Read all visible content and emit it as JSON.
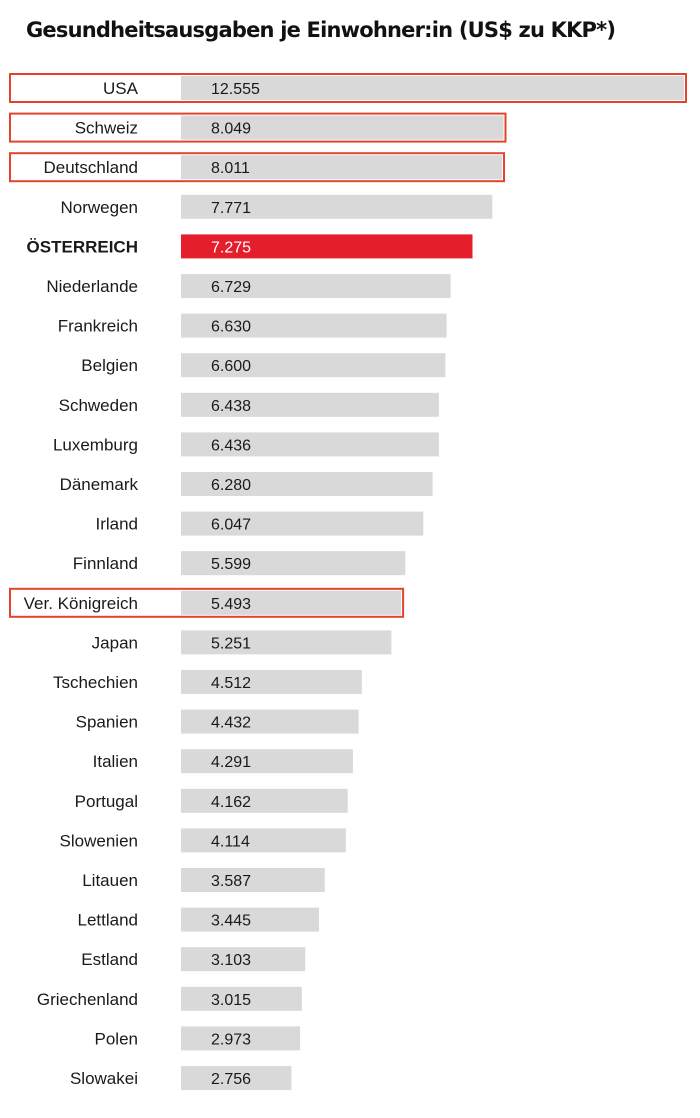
{
  "chart_data": {
    "type": "bar",
    "orientation": "horizontal",
    "title": "Gesundheitsausgaben je Einwohner:in (US$ zu KKP*)",
    "categories": [
      "USA",
      "Schweiz",
      "Deutschland",
      "Norwegen",
      "ÖSTERREICH",
      "Niederlande",
      "Frankreich",
      "Belgien",
      "Schweden",
      "Luxemburg",
      "Dänemark",
      "Irland",
      "Finnland",
      "Ver. Königreich",
      "Japan",
      "Tschechien",
      "Spanien",
      "Italien",
      "Portugal",
      "Slowenien",
      "Litauen",
      "Lettland",
      "Estland",
      "Griechenland",
      "Polen",
      "Slowakei"
    ],
    "values": [
      12555,
      8049,
      8011,
      7771,
      7275,
      6729,
      6630,
      6600,
      6438,
      6436,
      6280,
      6047,
      5599,
      5493,
      5251,
      4512,
      4432,
      4291,
      4162,
      4114,
      3587,
      3445,
      3103,
      3015,
      2973,
      2756
    ],
    "value_labels": [
      "12.555",
      "8.049",
      "8.011",
      "7.771",
      "7.275",
      "6.729",
      "6.630",
      "6.600",
      "6.438",
      "6.436",
      "6.280",
      "6.047",
      "5.599",
      "5.493",
      "5.251",
      "4.512",
      "4.432",
      "4.291",
      "4.162",
      "4.114",
      "3.587",
      "3.445",
      "3.103",
      "3.015",
      "2.973",
      "2.756"
    ],
    "highlighted_category": "ÖSTERREICH",
    "outlined_categories": [
      "USA",
      "Schweiz",
      "Deutschland",
      "Ver. Königreich"
    ],
    "xlim": [
      0,
      12555
    ],
    "grid": false,
    "legend": "none",
    "colors": {
      "bar": "#d9d9d9",
      "highlight_bar": "#e41f2b",
      "highlight_label": "#e41f2b",
      "outline": "#e2452c",
      "value_text": "#1a1a1a",
      "highlight_value_text": "#ffffff"
    }
  }
}
